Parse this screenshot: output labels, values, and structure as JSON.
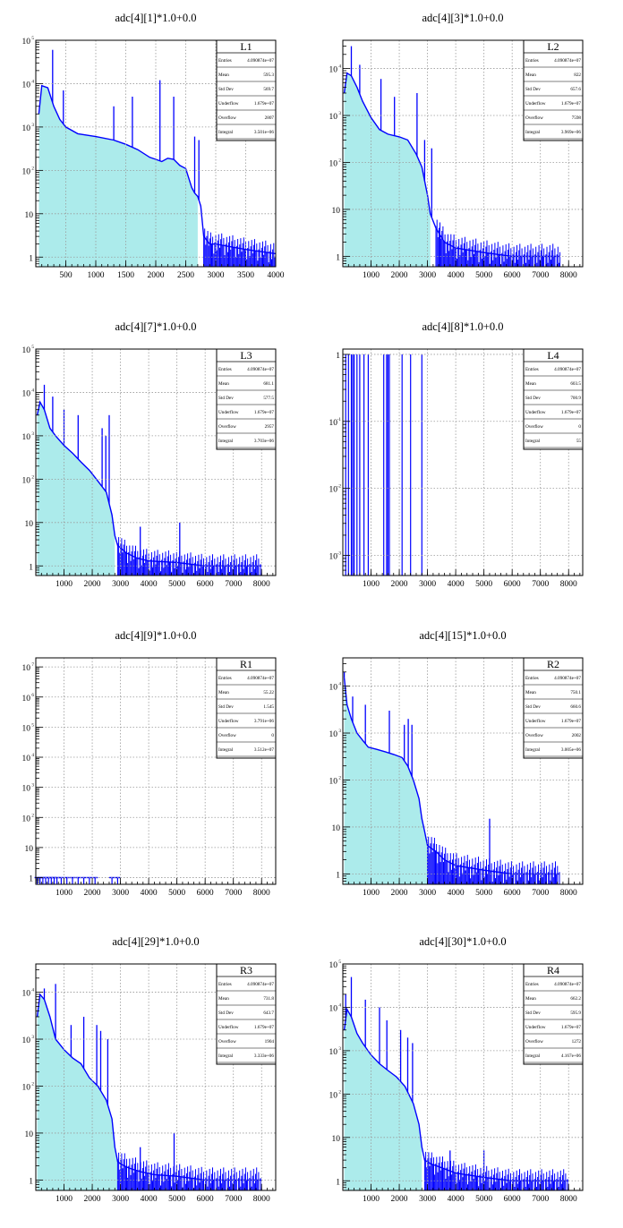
{
  "colors": {
    "line": "#0000ff",
    "fill": "#7fe0e0",
    "grid": "#9a9a9a",
    "axis": "#000000",
    "background": "#ffffff"
  },
  "stat_labels": [
    "Entries",
    "Mean",
    "Std Dev",
    "Underflow",
    "Overflow",
    "Integral"
  ],
  "charts": [
    {
      "id": "L1",
      "title": "adc[4][1]*1.0+0.0",
      "label": "L1",
      "stats": [
        "4.090874e+07",
        "595.3",
        "569.7",
        "1.679e+07",
        "2807",
        "3.501e+06"
      ],
      "xticks": [
        "500",
        "1000",
        "1500",
        "2000",
        "2500",
        "3000",
        "3500",
        "4000"
      ],
      "yticks": [
        "1",
        "10",
        "10",
        "10",
        "10",
        "10"
      ],
      "yexp": [
        "",
        "",
        "2",
        "3",
        "4",
        "5"
      ]
    },
    {
      "id": "L2",
      "title": "adc[4][3]*1.0+0.0",
      "label": "L2",
      "stats": [
        "4.090874e+07",
        "822",
        "657.6",
        "1.679e+07",
        "7598",
        "3.969e+06"
      ],
      "xticks": [
        "1000",
        "2000",
        "3000",
        "4000",
        "5000",
        "6000",
        "7000",
        "8000"
      ],
      "yticks": [
        "1",
        "10",
        "10",
        "10",
        "10"
      ],
      "yexp": [
        "",
        "",
        "2",
        "3",
        "4"
      ]
    },
    {
      "id": "L3",
      "title": "adc[4][7]*1.0+0.0",
      "label": "L3",
      "stats": [
        "4.090874e+07",
        "681.1",
        "577.5",
        "1.679e+07",
        "2957",
        "3.703e+06"
      ],
      "xticks": [
        "1000",
        "2000",
        "3000",
        "4000",
        "5000",
        "6000",
        "7000",
        "8000"
      ],
      "yticks": [
        "1",
        "10",
        "10",
        "10",
        "10",
        "10"
      ],
      "yexp": [
        "",
        "",
        "2",
        "3",
        "4",
        "5"
      ]
    },
    {
      "id": "L4",
      "title": "adc[4][8]*1.0+0.0",
      "label": "L4",
      "stats": [
        "4.090874e+07",
        "603.5",
        "700.9",
        "1.679e+07",
        "0",
        "55"
      ],
      "xticks": [
        "1000",
        "2000",
        "3000",
        "4000",
        "5000",
        "6000",
        "7000",
        "8000"
      ],
      "yticks": [
        "10",
        "10",
        "10",
        "1"
      ],
      "yexp": [
        "-3",
        "-2",
        "-1",
        ""
      ]
    },
    {
      "id": "R1",
      "title": "adc[4][9]*1.0+0.0",
      "label": "R1",
      "stats": [
        "4.090874e+07",
        "55.22",
        "1.545",
        "3.791e+06",
        "0",
        "3.512e+07"
      ],
      "xticks": [
        "1000",
        "2000",
        "3000",
        "4000",
        "5000",
        "6000",
        "7000",
        "8000"
      ],
      "yticks": [
        "1",
        "10",
        "10",
        "10",
        "10",
        "10",
        "10",
        "10"
      ],
      "yexp": [
        "",
        "",
        "2",
        "3",
        "4",
        "5",
        "6",
        "7"
      ]
    },
    {
      "id": "R2",
      "title": "adc[4][15]*1.0+0.0",
      "label": "R2",
      "stats": [
        "4.090874e+07",
        "750.1",
        "660.6",
        "1.679e+07",
        "2002",
        "3.005e+06"
      ],
      "xticks": [
        "1000",
        "2000",
        "3000",
        "4000",
        "5000",
        "6000",
        "7000",
        "8000"
      ],
      "yticks": [
        "1",
        "10",
        "10",
        "10",
        "10"
      ],
      "yexp": [
        "",
        "",
        "2",
        "3",
        "4"
      ]
    },
    {
      "id": "R3",
      "title": "adc[4][29]*1.0+0.0",
      "label": "R3",
      "stats": [
        "4.090874e+07",
        "731.8",
        "643.7",
        "1.679e+07",
        "1904",
        "3.333e+06"
      ],
      "xticks": [
        "1000",
        "2000",
        "3000",
        "4000",
        "5000",
        "6000",
        "7000",
        "8000"
      ],
      "yticks": [
        "1",
        "10",
        "10",
        "10",
        "10"
      ],
      "yexp": [
        "",
        "",
        "2",
        "3",
        "4"
      ]
    },
    {
      "id": "R4",
      "title": "adc[4][30]*1.0+0.0",
      "label": "R4",
      "stats": [
        "4.090874e+07",
        "662.2",
        "595.9",
        "1.679e+07",
        "1272",
        "4.167e+06"
      ],
      "xticks": [
        "1000",
        "2000",
        "3000",
        "4000",
        "5000",
        "6000",
        "7000",
        "8000"
      ],
      "yticks": [
        "1",
        "10",
        "10",
        "10",
        "10",
        "10"
      ],
      "yexp": [
        "",
        "",
        "2",
        "3",
        "4",
        "5"
      ]
    }
  ],
  "chart_data": [
    {
      "type": "area",
      "title": "adc[4][1]*1.0+0.0",
      "legend": "L1",
      "log_y": true,
      "grid": true,
      "xlim": [
        0,
        4000
      ],
      "ylim": [
        0.6,
        100000
      ],
      "fill_until": 2700,
      "x": [
        50,
        100,
        200,
        300,
        400,
        500,
        700,
        1000,
        1300,
        1500,
        1700,
        1900,
        2000,
        2100,
        2200,
        2300,
        2400,
        2500,
        2600,
        2650,
        2700,
        2750,
        2800,
        2900,
        3000,
        3500,
        4000
      ],
      "y": [
        2000,
        9000,
        8000,
        3000,
        1500,
        1000,
        700,
        600,
        500,
        400,
        300,
        200,
        180,
        160,
        190,
        180,
        130,
        110,
        40,
        30,
        25,
        15,
        3,
        2,
        2,
        1.5,
        1.2
      ],
      "spikes": [
        [
          280,
          60000
        ],
        [
          460,
          7000
        ],
        [
          1300,
          3000
        ],
        [
          1610,
          5000
        ],
        [
          2070,
          12000
        ],
        [
          2300,
          5000
        ],
        [
          2650,
          600
        ],
        [
          2720,
          500
        ]
      ]
    },
    {
      "type": "area",
      "title": "adc[4][3]*1.0+0.0",
      "legend": "L2",
      "log_y": true,
      "grid": true,
      "xlim": [
        0,
        8500
      ],
      "ylim": [
        0.6,
        40000
      ],
      "fill_until": 3100,
      "x": [
        50,
        150,
        300,
        500,
        700,
        1000,
        1300,
        1600,
        2000,
        2300,
        2600,
        2800,
        3000,
        3100,
        3300,
        3600,
        4000,
        5000,
        6000,
        7000,
        7700
      ],
      "y": [
        3000,
        8000,
        7000,
        4000,
        2000,
        900,
        500,
        400,
        350,
        300,
        150,
        80,
        20,
        8,
        4,
        2,
        1.5,
        1.2,
        1,
        1,
        1
      ],
      "spikes": [
        [
          300,
          30000
        ],
        [
          600,
          12000
        ],
        [
          1350,
          6000
        ],
        [
          1830,
          2500
        ],
        [
          2630,
          3000
        ],
        [
          2900,
          300
        ],
        [
          3150,
          200
        ]
      ]
    },
    {
      "type": "area",
      "title": "adc[4][7]*1.0+0.0",
      "legend": "L3",
      "log_y": true,
      "grid": true,
      "xlim": [
        0,
        8500
      ],
      "ylim": [
        0.6,
        100000
      ],
      "fill_until": 2800,
      "x": [
        50,
        150,
        300,
        500,
        700,
        1000,
        1300,
        1600,
        1900,
        2200,
        2500,
        2700,
        2800,
        2900,
        3200,
        3600,
        4000,
        5000,
        6000,
        7000,
        8000
      ],
      "y": [
        3000,
        6000,
        4000,
        1500,
        1000,
        600,
        400,
        250,
        160,
        90,
        50,
        15,
        5,
        3,
        2,
        1.5,
        1.3,
        1.2,
        1,
        1,
        1
      ],
      "spikes": [
        [
          300,
          15000
        ],
        [
          600,
          8000
        ],
        [
          1000,
          4000
        ],
        [
          1500,
          3000
        ],
        [
          2350,
          1500
        ],
        [
          2480,
          1000
        ],
        [
          2600,
          3000
        ],
        [
          3700,
          8
        ],
        [
          5100,
          10
        ]
      ]
    },
    {
      "type": "bar",
      "title": "adc[4][8]*1.0+0.0",
      "legend": "L4",
      "log_y": true,
      "grid": true,
      "xlim": [
        0,
        8500
      ],
      "ylim": [
        0.0005,
        1.2
      ],
      "x": [
        100,
        200,
        300,
        350,
        400,
        500,
        600,
        750,
        900,
        1450,
        1550,
        1600,
        1650,
        2100,
        2400,
        2800
      ],
      "y": [
        1,
        1,
        1,
        1,
        1,
        1,
        1,
        1,
        1,
        1,
        1,
        1,
        1,
        1,
        1,
        1
      ]
    },
    {
      "type": "bar",
      "title": "adc[4][9]*1.0+0.0",
      "legend": "R1",
      "log_y": true,
      "grid": true,
      "xlim": [
        0,
        8500
      ],
      "ylim": [
        0.6,
        20000000
      ],
      "x": [
        50,
        150,
        250,
        350,
        450,
        550,
        650,
        750,
        900,
        1100,
        1300,
        1500,
        1700,
        1900,
        2100,
        2700,
        2900
      ],
      "y": [
        1,
        1,
        1,
        1,
        1,
        1,
        1,
        1,
        1,
        1,
        1,
        1,
        1,
        1,
        1,
        1,
        1
      ]
    },
    {
      "type": "area",
      "title": "adc[4][15]*1.0+0.0",
      "legend": "R2",
      "log_y": true,
      "grid": true,
      "xlim": [
        0,
        8500
      ],
      "ylim": [
        0.6,
        40000
      ],
      "fill_until": 3000,
      "x": [
        50,
        150,
        300,
        500,
        700,
        900,
        1200,
        1500,
        1800,
        2100,
        2300,
        2500,
        2700,
        2800,
        2900,
        3000,
        3300,
        3600,
        4000,
        5000,
        6000,
        7000,
        7700
      ],
      "y": [
        15000,
        4000,
        2000,
        1000,
        700,
        500,
        450,
        400,
        350,
        300,
        200,
        100,
        40,
        15,
        8,
        4,
        3,
        2,
        1.5,
        1.2,
        1,
        1,
        1
      ],
      "spikes": [
        [
          50,
          20000
        ],
        [
          350,
          6000
        ],
        [
          800,
          4000
        ],
        [
          1650,
          3000
        ],
        [
          2180,
          1500
        ],
        [
          2320,
          2000
        ],
        [
          2450,
          1500
        ],
        [
          5200,
          15
        ]
      ]
    },
    {
      "type": "area",
      "title": "adc[4][29]*1.0+0.0",
      "legend": "R3",
      "log_y": true,
      "grid": true,
      "xlim": [
        0,
        8500
      ],
      "ylim": [
        0.6,
        40000
      ],
      "fill_until": 2900,
      "x": [
        50,
        150,
        300,
        500,
        700,
        1000,
        1300,
        1600,
        1900,
        2200,
        2500,
        2700,
        2800,
        2900,
        3000,
        3300,
        3700,
        4200,
        5000,
        6000,
        7000,
        8000
      ],
      "y": [
        3000,
        9000,
        7000,
        3000,
        1000,
        600,
        400,
        300,
        150,
        100,
        50,
        20,
        5,
        2.5,
        2.2,
        1.8,
        1.5,
        1.3,
        1.2,
        1,
        1,
        1
      ],
      "spikes": [
        [
          300,
          12000
        ],
        [
          700,
          15000
        ],
        [
          1250,
          2000
        ],
        [
          1700,
          3000
        ],
        [
          2160,
          2000
        ],
        [
          2300,
          1500
        ],
        [
          2550,
          1000
        ],
        [
          3700,
          5
        ],
        [
          4900,
          10
        ]
      ]
    },
    {
      "type": "area",
      "title": "adc[4][30]*1.0+0.0",
      "legend": "R4",
      "log_y": true,
      "grid": true,
      "xlim": [
        0,
        8500
      ],
      "ylim": [
        0.6,
        100000
      ],
      "fill_until": 2800,
      "x": [
        50,
        150,
        300,
        500,
        700,
        1000,
        1300,
        1600,
        1900,
        2200,
        2500,
        2700,
        2800,
        2900,
        3100,
        3500,
        4000,
        5000,
        6000,
        7000,
        8000
      ],
      "y": [
        3000,
        9000,
        6000,
        2500,
        1500,
        800,
        500,
        350,
        250,
        150,
        60,
        20,
        6,
        3,
        2.5,
        2,
        1.5,
        1.2,
        1,
        1,
        1
      ],
      "spikes": [
        [
          100,
          20000
        ],
        [
          300,
          50000
        ],
        [
          800,
          15000
        ],
        [
          1300,
          10000
        ],
        [
          1560,
          5000
        ],
        [
          2050,
          3000
        ],
        [
          2300,
          2000
        ],
        [
          2470,
          1500
        ],
        [
          3800,
          5
        ],
        [
          5000,
          5
        ]
      ]
    }
  ]
}
